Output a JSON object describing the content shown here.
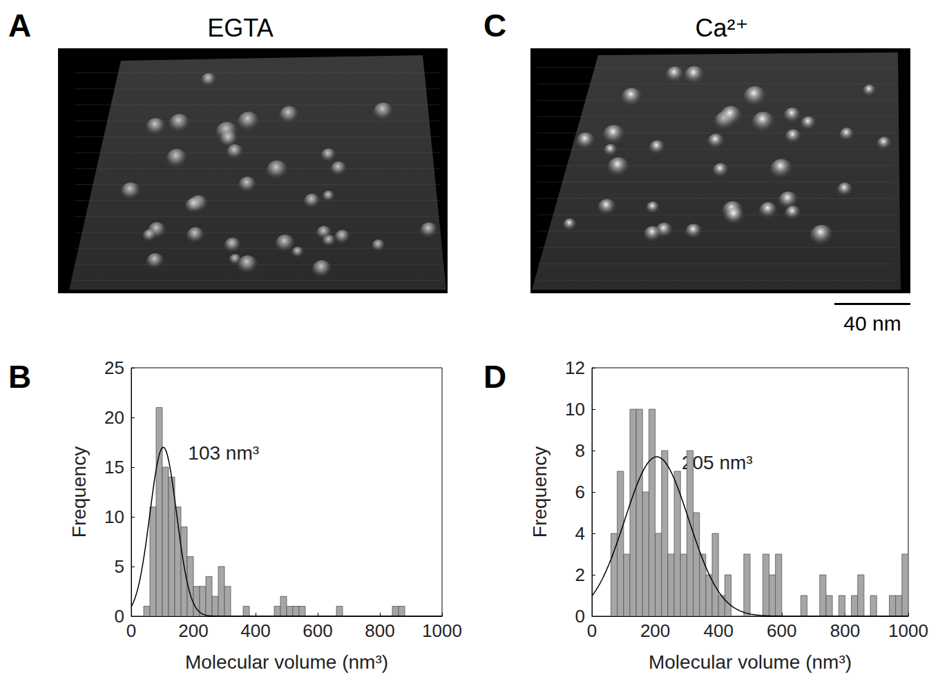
{
  "images": [
    {
      "letter": "A",
      "title": "EGTA"
    },
    {
      "letter": "C",
      "title": "Ca²⁺",
      "scale_bar": "40 nm"
    }
  ],
  "chart_data": [
    {
      "letter": "B",
      "type": "histogram",
      "bins": [
        0,
        20,
        40,
        60,
        80,
        100,
        120,
        140,
        160,
        180,
        200,
        220,
        240,
        260,
        280,
        300,
        320,
        340,
        360,
        380,
        400,
        420,
        440,
        460,
        480,
        500,
        520,
        540,
        560,
        580,
        600,
        620,
        640,
        660,
        680,
        700,
        720,
        740,
        760,
        780,
        800,
        820,
        840,
        860,
        880,
        900,
        920,
        940,
        960,
        980,
        1000
      ],
      "values": [
        0,
        0,
        1,
        11,
        21,
        15,
        14,
        11,
        9,
        6,
        3,
        3,
        4,
        2,
        5,
        3,
        0,
        0,
        1,
        0,
        0,
        0,
        0,
        1,
        2,
        1,
        1,
        1,
        0,
        0,
        0,
        0,
        0,
        1,
        0,
        0,
        0,
        0,
        0,
        0,
        0,
        0,
        1,
        1,
        0,
        0,
        0,
        0,
        0,
        0
      ],
      "color": "#a6a6a6",
      "xlabel": "Molecular volume (nm³)",
      "ylabel": "Frequency",
      "xlim": [
        0,
        1000
      ],
      "xticks": [
        0,
        200,
        400,
        600,
        800,
        1000
      ],
      "ylim": [
        0,
        25
      ],
      "yticks": [
        0,
        5,
        10,
        15,
        20,
        25
      ],
      "grid": false,
      "fit": {
        "mean": 103,
        "sd": 43,
        "peak": 17,
        "label": "103 nm³",
        "color": "#000000"
      }
    },
    {
      "letter": "D",
      "type": "histogram",
      "bins": [
        0,
        20,
        40,
        60,
        80,
        100,
        120,
        140,
        160,
        180,
        200,
        220,
        240,
        260,
        280,
        300,
        320,
        340,
        360,
        380,
        400,
        420,
        440,
        460,
        480,
        500,
        520,
        540,
        560,
        580,
        600,
        620,
        640,
        660,
        680,
        700,
        720,
        740,
        760,
        780,
        800,
        820,
        840,
        860,
        880,
        900,
        920,
        940,
        960,
        980,
        1000
      ],
      "values": [
        0,
        0,
        0,
        4,
        7,
        3,
        10,
        10,
        6,
        10,
        4,
        8,
        3,
        7,
        3,
        8,
        5,
        3,
        2,
        4,
        1,
        2,
        0,
        0,
        3,
        0,
        0,
        3,
        2,
        3,
        0,
        0,
        0,
        1,
        0,
        0,
        2,
        1,
        0,
        1,
        0,
        1,
        2,
        0,
        1,
        0,
        0,
        1,
        1,
        3
      ],
      "color": "#a6a6a6",
      "xlabel": "Molecular volume (nm³)",
      "ylabel": "Frequency",
      "xlim": [
        0,
        1000
      ],
      "xticks": [
        0,
        200,
        400,
        600,
        800,
        1000
      ],
      "ylim": [
        0,
        12
      ],
      "yticks": [
        0,
        2,
        4,
        6,
        8,
        10,
        12
      ],
      "grid": false,
      "fit": {
        "mean": 205,
        "sd": 101,
        "peak": 7.7,
        "label": "205 nm³",
        "color": "#000000"
      }
    }
  ]
}
